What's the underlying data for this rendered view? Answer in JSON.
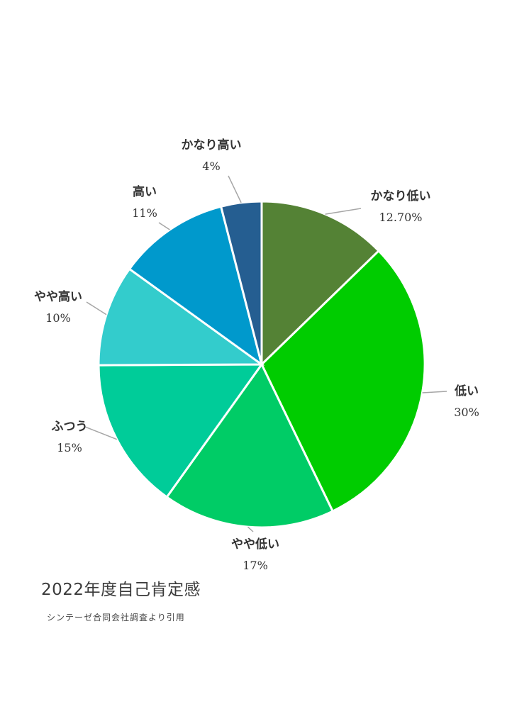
{
  "chart_data": {
    "type": "pie",
    "title": "2022年度自己肯定感",
    "subtitle": "シンテーゼ合同会社調査より引用",
    "start_angle_deg": 0,
    "direction": "clockwise",
    "slices": [
      {
        "label": "かなり低い",
        "value": 12.7,
        "display": "12.70%",
        "color": "#548235"
      },
      {
        "label": "低い",
        "value": 30,
        "display": "30%",
        "color": "#00CC00"
      },
      {
        "label": "やや低い",
        "value": 17,
        "display": "17%",
        "color": "#00CC66"
      },
      {
        "label": "ふつう",
        "value": 15,
        "display": "15%",
        "color": "#00CC99"
      },
      {
        "label": "やや高い",
        "value": 10,
        "display": "10%",
        "color": "#33CCCC"
      },
      {
        "label": "高い",
        "value": 11,
        "display": "11%",
        "color": "#0099CC"
      },
      {
        "label": "かなり高い",
        "value": 4,
        "display": "4%",
        "color": "#255E91"
      }
    ],
    "slice_border_color": "#ffffff",
    "leader_line_color": "#a6a6a6"
  }
}
